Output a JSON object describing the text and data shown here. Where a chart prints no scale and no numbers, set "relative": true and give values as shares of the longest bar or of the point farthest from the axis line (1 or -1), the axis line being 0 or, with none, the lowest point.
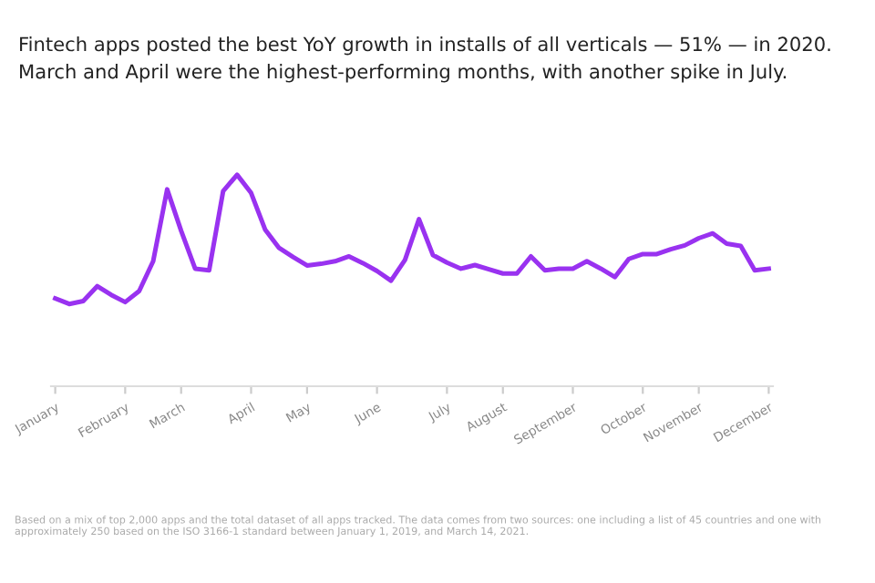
{
  "chart_data": {
    "type": "line",
    "title": "Fintech apps posted the best YoY growth in installs of all verticals — 51% — in 2020.\nMarch and April were the highest-performing months, with another spike in July.",
    "relative": true,
    "categories": [
      "January",
      null,
      null,
      null,
      null,
      "February",
      null,
      null,
      null,
      "March",
      null,
      null,
      null,
      null,
      "April",
      null,
      null,
      null,
      "May",
      null,
      null,
      null,
      null,
      "June",
      null,
      null,
      null,
      null,
      "July",
      null,
      null,
      null,
      "August",
      null,
      null,
      null,
      null,
      "September",
      null,
      null,
      null,
      null,
      "October",
      null,
      null,
      null,
      "November",
      null,
      null,
      null,
      null,
      "December"
    ],
    "series": [
      {
        "color": "#9932f0",
        "values": [
          0.415,
          0.389,
          0.403,
          0.473,
          0.432,
          0.398,
          0.45,
          0.591,
          0.931,
          0.735,
          0.556,
          0.548,
          0.922,
          1,
          0.914,
          0.741,
          0.654,
          0.611,
          0.571,
          0.579,
          0.591,
          0.614,
          0.582,
          0.545,
          0.499,
          0.597,
          0.79,
          0.62,
          0.585,
          0.556,
          0.573,
          0.553,
          0.533,
          0.533,
          0.614,
          0.548,
          0.556,
          0.556,
          0.591,
          0.556,
          0.516,
          0.602,
          0.625,
          0.625,
          0.648,
          0.666,
          0.7,
          0.723,
          0.674,
          0.663,
          0.548,
          0.556
        ]
      }
    ],
    "grid": false,
    "marker": "none",
    "line_style": "solid",
    "annotations": [
      "Based on a mix of top 2,000 apps and the total dataset of all apps tracked. The data comes from two sources: one including a list of 45 countries and one with approximately 250 based on the ISO 3166-1 standard between January 1, 2019, and March 14, 2021."
    ]
  }
}
